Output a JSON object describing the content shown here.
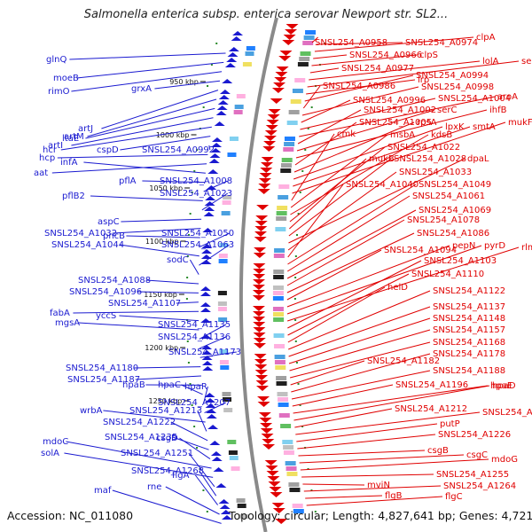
{
  "title": "Salmonella enterica subsp. enterica serovar Newport str. SL2...",
  "footer": {
    "accession": "Accession: NC_011080",
    "topology": "Topology: circular; Length: 4,827,641 bp; Genes: 4,721"
  },
  "colors": {
    "left": "#1a1ad0",
    "right": "#e00000",
    "backbone": "#8a8a8a",
    "tick": "#2a8a2a"
  },
  "ticks": [
    "950 kbp",
    "1000 kbp",
    "1050 kbp",
    "1100 kbp",
    "1150 kbp",
    "1200 kbp",
    "1250 kbp"
  ],
  "left_labels": [
    "glnQ",
    "moeB",
    "rimO",
    "grxA",
    "artJ",
    "artM",
    "ltaE",
    "artI",
    "hcr",
    "cspD",
    "SNSL254_A0992",
    "hcp",
    "aat",
    "infA",
    "pflA",
    "SNSL254_A1008",
    "pflB2",
    "SNSL254_A1023",
    "aspC",
    "SNSL254_A1032",
    "pncB",
    "SNSL254_A1050",
    "SNSL254_A1044",
    "SNSL254_A1063",
    "sodC",
    "SNSL254_A1088",
    "SNSL254_A1096",
    "SNSL254_A1107",
    "fabA",
    "yccS",
    "mgsA",
    "SNSL254_A1135",
    "SNSL254_A1136",
    "SNSL254_A1173",
    "SNSL254_A1180",
    "SNSL254_A1187",
    "hpaB",
    "hpaC",
    "hpaR",
    "SNSL254_A1207",
    "wrbA",
    "SNSL254_A1213",
    "SNSL254_A1222",
    "SNSL254_A1235",
    "csgD",
    "mdoC",
    "solA",
    "SNSL254_A1251",
    "SNSL254_A1268",
    "flgA",
    "rne",
    "maf"
  ],
  "right_labels": [
    "SNSL254_A0958",
    "SNSL254_A0974",
    "clpA",
    "SNSL254_A0966",
    "clpS",
    "SNSL254_A0977",
    "lolA",
    "serS",
    "lrp",
    "SNSL254_A0994",
    "SNSL254_A0986",
    "SNSL254_A0998",
    "SNSL254_A0996",
    "SNSL254_A1004",
    "aroA",
    "SNSL254_A1002",
    "serC",
    "ihfB",
    "SNSL254_A1005",
    "rpsA",
    "lpxK",
    "smtA",
    "mukF",
    "cmk",
    "msbA",
    "kdsB",
    "SNSL254_A1022",
    "mukB",
    "SNSL254_A1028",
    "dpaL",
    "SNSL254_A1033",
    "SNSL254_A1040",
    "SNSL254_A1049",
    "SNSL254_A1061",
    "SNSL254_A1069",
    "SNSL254_A1078",
    "SNSL254_A1086",
    "SNSL254_A1094",
    "pepN",
    "pyrD",
    "rlmL",
    "SNSL254_A1103",
    "SNSL254_A1110",
    "helD",
    "SNSL254_A1122",
    "SNSL254_A1137",
    "SNSL254_A1148",
    "SNSL254_A1157",
    "SNSL254_A1168",
    "SNSL254_A1182",
    "SNSL254_A1178",
    "SNSL254_A1188",
    "SNSL254_A1196",
    "hpaE",
    "hpaD",
    "SNSL254_A1212",
    "SNSL254_A1215",
    "putP",
    "SNSL254_A1226",
    "csgB",
    "csgC",
    "mdoG",
    "SNSL254_A1255",
    "mviN",
    "SNSL254_A1264",
    "flgB",
    "flgC"
  ]
}
